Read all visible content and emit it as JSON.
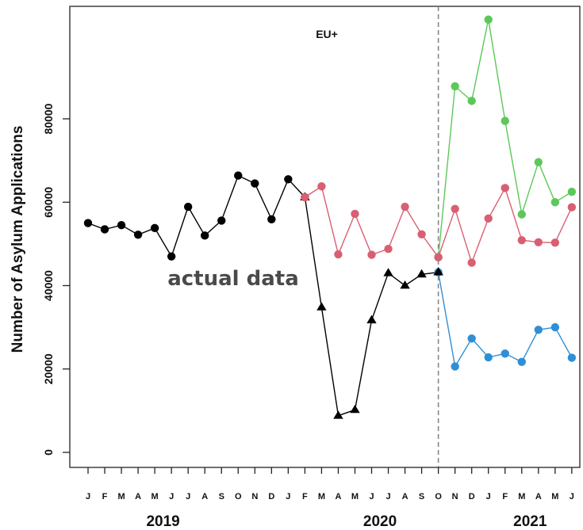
{
  "chart_data": {
    "type": "line",
    "title": "EU+",
    "ylabel": "Number of Asylum Applications",
    "xlabel": "",
    "ylim": [
      0,
      100000
    ],
    "yticks": [
      0,
      20000,
      40000,
      60000,
      80000
    ],
    "annotation": "actual data",
    "months": [
      "J",
      "F",
      "M",
      "A",
      "M",
      "J",
      "J",
      "A",
      "S",
      "O",
      "N",
      "D",
      "J",
      "F",
      "M",
      "A",
      "M",
      "J",
      "J",
      "A",
      "S",
      "O",
      "N",
      "D",
      "J",
      "F",
      "M",
      "A",
      "M",
      "J"
    ],
    "years": [
      {
        "label": "2019",
        "center_index": 4.5
      },
      {
        "label": "2020",
        "center_index": 17.5
      },
      {
        "label": "2021",
        "center_index": 26.5
      }
    ],
    "forecast_start_index": 21,
    "series": [
      {
        "color": "#000000",
        "marker": "circle",
        "points": [
          [
            0,
            55000
          ],
          [
            1,
            53500
          ],
          [
            2,
            54500
          ],
          [
            3,
            52200
          ],
          [
            4,
            53800
          ],
          [
            5,
            47000
          ],
          [
            6,
            58900
          ],
          [
            7,
            52000
          ],
          [
            8,
            55600
          ],
          [
            9,
            66400
          ],
          [
            10,
            64500
          ],
          [
            11,
            55900
          ],
          [
            12,
            65500
          ],
          [
            13,
            61200
          ]
        ]
      },
      {
        "color": "#000000",
        "marker": "triangle",
        "points": [
          [
            13,
            61200
          ],
          [
            14,
            34800
          ],
          [
            15,
            8800
          ],
          [
            16,
            10200
          ],
          [
            17,
            31700
          ],
          [
            18,
            43000
          ],
          [
            19,
            40000
          ],
          [
            20,
            42700
          ],
          [
            21,
            43200
          ]
        ]
      },
      {
        "color": "#d95f72",
        "marker": "circle",
        "points": [
          [
            13,
            61200
          ],
          [
            14,
            63800
          ],
          [
            15,
            47500
          ],
          [
            16,
            57200
          ],
          [
            17,
            47400
          ],
          [
            18,
            48800
          ],
          [
            19,
            58900
          ],
          [
            20,
            52300
          ],
          [
            21,
            46800
          ],
          [
            22,
            58400
          ],
          [
            23,
            45500
          ],
          [
            24,
            56100
          ],
          [
            25,
            63400
          ],
          [
            26,
            50900
          ],
          [
            27,
            50400
          ],
          [
            28,
            50300
          ],
          [
            29,
            58800
          ]
        ]
      },
      {
        "color": "#5cc85a",
        "marker": "circle",
        "points": [
          [
            21,
            46800
          ],
          [
            22,
            87800
          ],
          [
            23,
            84300
          ],
          [
            24,
            103800
          ],
          [
            25,
            79500
          ],
          [
            26,
            57100
          ],
          [
            27,
            69600
          ],
          [
            28,
            60000
          ],
          [
            29,
            62500
          ]
        ]
      },
      {
        "color": "#2f8fd6",
        "marker": "circle",
        "points": [
          [
            21,
            43200
          ],
          [
            22,
            20600
          ],
          [
            23,
            27300
          ],
          [
            24,
            22800
          ],
          [
            25,
            23700
          ],
          [
            26,
            21700
          ],
          [
            27,
            29400
          ],
          [
            28,
            30000
          ],
          [
            29,
            22700
          ]
        ]
      }
    ]
  }
}
